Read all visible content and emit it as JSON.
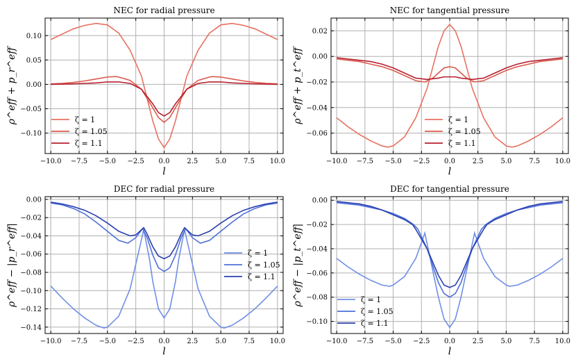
{
  "chart_data": [
    {
      "type": "line",
      "title": "NEC for radial pressure",
      "xlabel": "l",
      "ylabel": "ρ^eff + p_r^eff",
      "xlim": [
        -10.5,
        10.5
      ],
      "ylim": [
        -0.142,
        0.136
      ],
      "xticks": [
        -10,
        -7.5,
        -5,
        -2.5,
        0,
        2.5,
        5,
        7.5,
        10
      ],
      "xtick_labels": [
        "−10.0",
        "−7.5",
        "−5.0",
        "−2.5",
        "0.0",
        "2.5",
        "5.0",
        "7.5",
        "10.0"
      ],
      "yticks": [
        -0.1,
        -0.05,
        0.0,
        0.05,
        0.1
      ],
      "ytick_labels": [
        "−0.10",
        "−0.05",
        "0.00",
        "0.05",
        "0.10"
      ],
      "grid": true,
      "legend": "lower-left",
      "series": [
        {
          "name": "ζ = 1",
          "color": "#e87060",
          "x": [
            -10,
            -9,
            -8,
            -7,
            -6,
            -5,
            -4,
            -3,
            -2,
            -1,
            -0.5,
            0,
            0.5,
            1,
            2,
            3,
            4,
            5,
            6,
            7,
            8,
            9,
            10
          ],
          "y": [
            0.092,
            0.103,
            0.114,
            0.121,
            0.125,
            0.122,
            0.105,
            0.07,
            0.017,
            -0.075,
            -0.112,
            -0.13,
            -0.112,
            -0.075,
            0.017,
            0.07,
            0.105,
            0.122,
            0.125,
            0.121,
            0.114,
            0.103,
            0.092
          ]
        },
        {
          "name": "ζ = 1.05",
          "color": "#d9594c",
          "x": [
            -10,
            -9,
            -8,
            -7,
            -6,
            -5,
            -4.3,
            -4,
            -3,
            -2,
            -1,
            -0.5,
            0,
            0.5,
            1,
            2,
            3,
            4,
            4.3,
            5,
            6,
            7,
            8,
            9,
            10
          ],
          "y": [
            0.001,
            0.002,
            0.004,
            0.007,
            0.011,
            0.015,
            0.016,
            0.015,
            0.008,
            -0.01,
            -0.048,
            -0.068,
            -0.078,
            -0.068,
            -0.048,
            -0.01,
            0.008,
            0.015,
            0.016,
            0.015,
            0.011,
            0.007,
            0.004,
            0.002,
            0.001
          ]
        },
        {
          "name": "ζ = 1.1",
          "color": "#b5202e",
          "x": [
            -10,
            -9,
            -8,
            -7,
            -6,
            -5,
            -4,
            -3,
            -2,
            -1,
            -0.5,
            0,
            0.5,
            1,
            2,
            3,
            4,
            5,
            6,
            7,
            8,
            9,
            10
          ],
          "y": [
            0.0,
            0.0005,
            0.001,
            0.002,
            0.003,
            0.005,
            0.005,
            0.002,
            -0.01,
            -0.04,
            -0.058,
            -0.065,
            -0.058,
            -0.04,
            -0.01,
            0.002,
            0.005,
            0.005,
            0.003,
            0.002,
            0.001,
            0.0005,
            0.0
          ]
        }
      ]
    },
    {
      "type": "line",
      "title": "NEC for tangential pressure",
      "xlabel": "l",
      "ylabel": "ρ^eff + p_t^eff",
      "xlim": [
        -10.5,
        10.5
      ],
      "ylim": [
        -0.076,
        0.03
      ],
      "xticks": [
        -10,
        -7.5,
        -5,
        -2.5,
        0,
        2.5,
        5,
        7.5,
        10
      ],
      "xtick_labels": [
        "−10.0",
        "−7.5",
        "−5.0",
        "−2.5",
        "0.0",
        "2.5",
        "5.0",
        "7.5",
        "10.0"
      ],
      "yticks": [
        -0.06,
        -0.04,
        -0.02,
        0.0,
        0.02
      ],
      "ytick_labels": [
        "−0.06",
        "−0.04",
        "−0.02",
        "0.00",
        "0.02"
      ],
      "grid": true,
      "legend": "lower-center",
      "series": [
        {
          "name": "ζ = 1",
          "color": "#e87060",
          "x": [
            -10,
            -9,
            -8,
            -7,
            -6,
            -5.5,
            -5,
            -4,
            -3,
            -2,
            -1,
            -0.5,
            0,
            0.5,
            1,
            2,
            3,
            4,
            5,
            5.5,
            6,
            7,
            8,
            9,
            10
          ],
          "y": [
            -0.048,
            -0.055,
            -0.061,
            -0.066,
            -0.07,
            -0.071,
            -0.07,
            -0.063,
            -0.048,
            -0.025,
            0.008,
            0.02,
            0.025,
            0.02,
            0.008,
            -0.025,
            -0.048,
            -0.063,
            -0.07,
            -0.071,
            -0.07,
            -0.066,
            -0.061,
            -0.055,
            -0.048
          ]
        },
        {
          "name": "ζ = 1.05",
          "color": "#d9594c",
          "x": [
            -10,
            -9,
            -8,
            -7,
            -6,
            -5,
            -4,
            -3,
            -2.2,
            -1.5,
            -1,
            -0.5,
            0,
            0.5,
            1,
            1.5,
            2.2,
            3,
            4,
            5,
            6,
            7,
            8,
            9,
            10
          ],
          "y": [
            -0.002,
            -0.003,
            -0.004,
            -0.006,
            -0.008,
            -0.011,
            -0.015,
            -0.019,
            -0.02,
            -0.017,
            -0.013,
            -0.009,
            -0.008,
            -0.009,
            -0.013,
            -0.017,
            -0.02,
            -0.019,
            -0.015,
            -0.011,
            -0.008,
            -0.006,
            -0.004,
            -0.003,
            -0.002
          ]
        },
        {
          "name": "ζ = 1.1",
          "color": "#b5202e",
          "x": [
            -10,
            -9,
            -8,
            -7,
            -6,
            -5,
            -4,
            -3,
            -2,
            -1,
            -0.5,
            0,
            0.5,
            1,
            2,
            3,
            4,
            5,
            6,
            7,
            8,
            9,
            10
          ],
          "y": [
            -0.001,
            -0.002,
            -0.003,
            -0.004,
            -0.006,
            -0.009,
            -0.013,
            -0.017,
            -0.018,
            -0.017,
            -0.016,
            -0.016,
            -0.016,
            -0.017,
            -0.018,
            -0.017,
            -0.013,
            -0.009,
            -0.006,
            -0.004,
            -0.003,
            -0.002,
            -0.001
          ]
        }
      ]
    },
    {
      "type": "line",
      "title": "DEC for radial pressure",
      "xlabel": "l",
      "ylabel": "ρ^eff − |p_r^eff|",
      "xlim": [
        -10.5,
        10.5
      ],
      "ylim": [
        -0.147,
        0.003
      ],
      "xticks": [
        -10,
        -7.5,
        -5,
        -2.5,
        0,
        2.5,
        5,
        7.5,
        10
      ],
      "xtick_labels": [
        "−10.0",
        "−7.5",
        "−5.0",
        "−2.5",
        "0.0",
        "2.5",
        "5.0",
        "7.5",
        "10.0"
      ],
      "yticks": [
        -0.14,
        -0.12,
        -0.1,
        -0.08,
        -0.06,
        -0.04,
        -0.02,
        0.0
      ],
      "ytick_labels": [
        "−0.14",
        "−0.12",
        "−0.10",
        "−0.08",
        "−0.06",
        "−0.04",
        "−0.02",
        "0.00"
      ],
      "grid": true,
      "legend": "center-right",
      "series": [
        {
          "name": "ζ = 1",
          "color": "#6f8fe6",
          "x": [
            -10,
            -9,
            -8,
            -7,
            -6,
            -5.3,
            -5,
            -4,
            -3,
            -2.2,
            -1.8,
            -1.3,
            -1,
            -0.5,
            0,
            0.5,
            1,
            1.3,
            1.8,
            2.2,
            3,
            4,
            5,
            5.3,
            6,
            7,
            8,
            9,
            10
          ],
          "y": [
            -0.095,
            -0.108,
            -0.12,
            -0.13,
            -0.138,
            -0.141,
            -0.14,
            -0.128,
            -0.098,
            -0.055,
            -0.033,
            -0.065,
            -0.09,
            -0.12,
            -0.13,
            -0.12,
            -0.09,
            -0.065,
            -0.033,
            -0.055,
            -0.098,
            -0.128,
            -0.14,
            -0.141,
            -0.138,
            -0.13,
            -0.12,
            -0.108,
            -0.095
          ]
        },
        {
          "name": "ζ = 1.05",
          "color": "#4d6fd8",
          "x": [
            -10,
            -9,
            -8,
            -7,
            -6,
            -5,
            -4,
            -3.2,
            -2.5,
            -1.9,
            -1.5,
            -1,
            -0.5,
            0,
            0.5,
            1,
            1.5,
            1.9,
            2.5,
            3.2,
            4,
            5,
            6,
            7,
            8,
            9,
            10
          ],
          "y": [
            -0.004,
            -0.006,
            -0.01,
            -0.016,
            -0.025,
            -0.035,
            -0.045,
            -0.048,
            -0.042,
            -0.032,
            -0.042,
            -0.061,
            -0.075,
            -0.079,
            -0.075,
            -0.061,
            -0.042,
            -0.032,
            -0.042,
            -0.048,
            -0.045,
            -0.035,
            -0.025,
            -0.016,
            -0.01,
            -0.006,
            -0.004
          ]
        },
        {
          "name": "ζ = 1.1",
          "color": "#2a3fb0",
          "x": [
            -10,
            -9,
            -8,
            -7,
            -6,
            -5,
            -4,
            -3,
            -2.5,
            -1.8,
            -1.5,
            -1,
            -0.5,
            0,
            0.5,
            1,
            1.5,
            1.8,
            2.5,
            3,
            4,
            5,
            6,
            7,
            8,
            9,
            10
          ],
          "y": [
            -0.003,
            -0.005,
            -0.008,
            -0.012,
            -0.018,
            -0.026,
            -0.035,
            -0.04,
            -0.039,
            -0.031,
            -0.038,
            -0.052,
            -0.062,
            -0.065,
            -0.062,
            -0.052,
            -0.038,
            -0.031,
            -0.039,
            -0.04,
            -0.035,
            -0.026,
            -0.018,
            -0.012,
            -0.008,
            -0.005,
            -0.003
          ]
        }
      ]
    },
    {
      "type": "line",
      "title": "DEC for tangential pressure",
      "xlabel": "l",
      "ylabel": "ρ^eff − |p_t^eff|",
      "xlim": [
        -10.5,
        10.5
      ],
      "ylim": [
        -0.11,
        0.003
      ],
      "xticks": [
        -10,
        -7.5,
        -5,
        -2.5,
        0,
        2.5,
        5,
        7.5,
        10
      ],
      "xtick_labels": [
        "−10.0",
        "−7.5",
        "−5.0",
        "−2.5",
        "0.0",
        "2.5",
        "5.0",
        "7.5",
        "10.0"
      ],
      "yticks": [
        -0.1,
        -0.08,
        -0.06,
        -0.04,
        -0.02,
        0.0
      ],
      "ytick_labels": [
        "−0.10",
        "−0.08",
        "−0.06",
        "−0.04",
        "−0.02",
        "0.00"
      ],
      "grid": true,
      "legend": "lower-left",
      "series": [
        {
          "name": "ζ = 1",
          "color": "#6f8fe6",
          "x": [
            -10,
            -9,
            -8,
            -7,
            -6,
            -5.3,
            -5,
            -4,
            -3,
            -2.5,
            -2.2,
            -1.5,
            -1,
            -0.5,
            0,
            0.5,
            1,
            1.5,
            2.2,
            2.5,
            3,
            4,
            5,
            5.3,
            6,
            7,
            8,
            9,
            10
          ],
          "y": [
            -0.048,
            -0.055,
            -0.061,
            -0.066,
            -0.07,
            -0.071,
            -0.07,
            -0.063,
            -0.048,
            -0.035,
            -0.027,
            -0.058,
            -0.08,
            -0.098,
            -0.105,
            -0.098,
            -0.08,
            -0.058,
            -0.027,
            -0.035,
            -0.048,
            -0.063,
            -0.07,
            -0.071,
            -0.07,
            -0.066,
            -0.061,
            -0.055,
            -0.048
          ]
        },
        {
          "name": "ζ = 1.05",
          "color": "#4d6fd8",
          "x": [
            -10,
            -9,
            -8,
            -7,
            -6,
            -5,
            -4,
            -3.2,
            -2.8,
            -2,
            -1,
            -0.5,
            0,
            0.5,
            1,
            2,
            2.8,
            3.2,
            4,
            5,
            6,
            7,
            8,
            9,
            10
          ],
          "y": [
            -0.002,
            -0.003,
            -0.004,
            -0.006,
            -0.008,
            -0.011,
            -0.015,
            -0.02,
            -0.024,
            -0.04,
            -0.068,
            -0.077,
            -0.08,
            -0.077,
            -0.068,
            -0.04,
            -0.024,
            -0.02,
            -0.015,
            -0.011,
            -0.008,
            -0.006,
            -0.004,
            -0.003,
            -0.002
          ]
        },
        {
          "name": "ζ = 1.1",
          "color": "#2a3fb0",
          "x": [
            -10,
            -9,
            -8,
            -7,
            -6,
            -5,
            -4,
            -3.3,
            -3,
            -2,
            -1,
            -0.5,
            0,
            0.5,
            1,
            2,
            3,
            3.3,
            4,
            5,
            6,
            7,
            8,
            9,
            10
          ],
          "y": [
            -0.001,
            -0.002,
            -0.003,
            -0.005,
            -0.008,
            -0.012,
            -0.016,
            -0.02,
            -0.024,
            -0.04,
            -0.062,
            -0.07,
            -0.072,
            -0.07,
            -0.062,
            -0.04,
            -0.024,
            -0.02,
            -0.016,
            -0.012,
            -0.008,
            -0.005,
            -0.003,
            -0.002,
            -0.001
          ]
        }
      ]
    }
  ]
}
